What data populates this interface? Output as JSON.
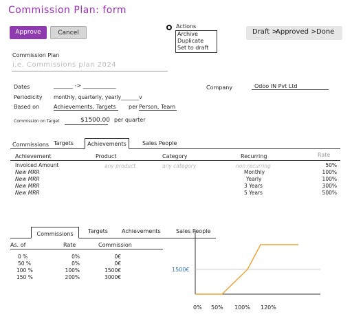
{
  "title": "Commission Plan: form",
  "toolbar": {
    "approve_label": "Approve",
    "cancel_label": "Cancel"
  },
  "actions": {
    "label": "Actions",
    "items": [
      "Archive",
      "Duplicate",
      "Set to draft"
    ]
  },
  "status": {
    "draft": "Draft >",
    "approved": "Approved >",
    "done": "Done"
  },
  "form": {
    "plan_label": "Commission Plan",
    "plan_placeholder": "i.e. Commissions plan 2024",
    "dates_label": "Dates",
    "dates_value": "_______ -> ____________",
    "periodicity_label": "Periodicity",
    "periodicity_value": "monthly, quarterly, yearly_______v",
    "based_label": "Based on",
    "based_value": "Achievements, Targets",
    "per_label": "per",
    "per_value": "Person, Team",
    "target_label": "Commission on Target",
    "target_value": "$1500.00",
    "target_period": "per quarter",
    "company_label": "Company",
    "company_value": "Odoo IN Pvt Ltd"
  },
  "tabs_top": [
    "Commissions",
    "Targets",
    "Achievements",
    "Sales People"
  ],
  "achievements_table": {
    "headers": [
      "Achievement",
      "Product",
      "Category",
      "Recurring",
      "Rate"
    ],
    "rows": [
      [
        "Invoiced Amount",
        "any product",
        "any category",
        "non recurring",
        "50%"
      ],
      [
        "New MRR",
        "",
        "",
        "Monthly",
        "100%"
      ],
      [
        "New MRR",
        "",
        "",
        "Yearly",
        "100%"
      ],
      [
        "New MRR",
        "",
        "",
        "3 Years",
        "300%"
      ],
      [
        "New MRR",
        "",
        "",
        "5 Years",
        "500%"
      ]
    ]
  },
  "tabs_bottom": [
    "Commissions",
    "Targets",
    "Achievements",
    "Sales People"
  ],
  "commissions_table": {
    "headers": [
      "As. of",
      "Rate",
      "Commission"
    ],
    "rows": [
      [
        "0 %",
        "0%",
        "0€"
      ],
      [
        "50 %",
        "0%",
        "0€"
      ],
      [
        "100 %",
        "100%",
        "1500€"
      ],
      [
        "150 %",
        "200%",
        "3000€"
      ]
    ]
  },
  "chart_data": {
    "type": "line",
    "x_tick_labels": [
      "0%",
      "50%",
      "100%",
      "120%"
    ],
    "y_tick_labels": [
      "1500€"
    ],
    "series": [
      {
        "x": [
          0,
          50,
          100,
          120,
          150
        ],
        "y": [
          0,
          0,
          1500,
          3000,
          3000
        ]
      }
    ],
    "reference_line": 1500,
    "line_color": "#f0a030",
    "ref_color": "#cccccc",
    "accent": "#2a6fb0"
  }
}
